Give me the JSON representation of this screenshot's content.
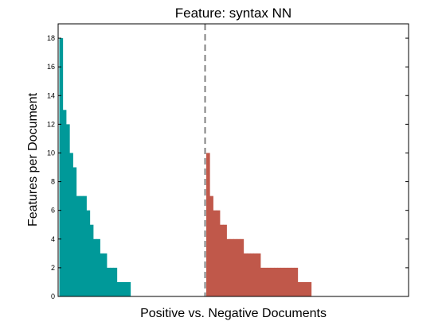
{
  "chart_data": {
    "type": "bar",
    "title": "Feature: syntax NN",
    "xlabel": "Positive vs. Negative Documents",
    "ylabel": "Features per Document",
    "ylim": [
      0,
      19
    ],
    "yticks": [
      0,
      2,
      4,
      6,
      8,
      10,
      12,
      14,
      16,
      18
    ],
    "grid": false,
    "divider": {
      "style": "dashed",
      "color": "#808080"
    },
    "series": [
      {
        "group": "positive",
        "color": "#009999",
        "values": [
          18,
          13,
          12,
          10,
          9,
          7,
          7,
          7,
          6,
          5,
          4,
          4,
          3,
          3,
          2,
          2,
          2,
          1,
          1,
          1,
          1
        ]
      },
      {
        "group": "negative",
        "color": "#C0584A",
        "values": [
          10,
          7,
          6,
          6,
          5,
          5,
          4,
          4,
          4,
          4,
          4,
          3,
          3,
          3,
          3,
          3,
          2,
          2,
          2,
          2,
          2,
          2,
          2,
          2,
          2,
          2,
          2,
          1,
          1,
          1,
          1
        ]
      }
    ]
  }
}
